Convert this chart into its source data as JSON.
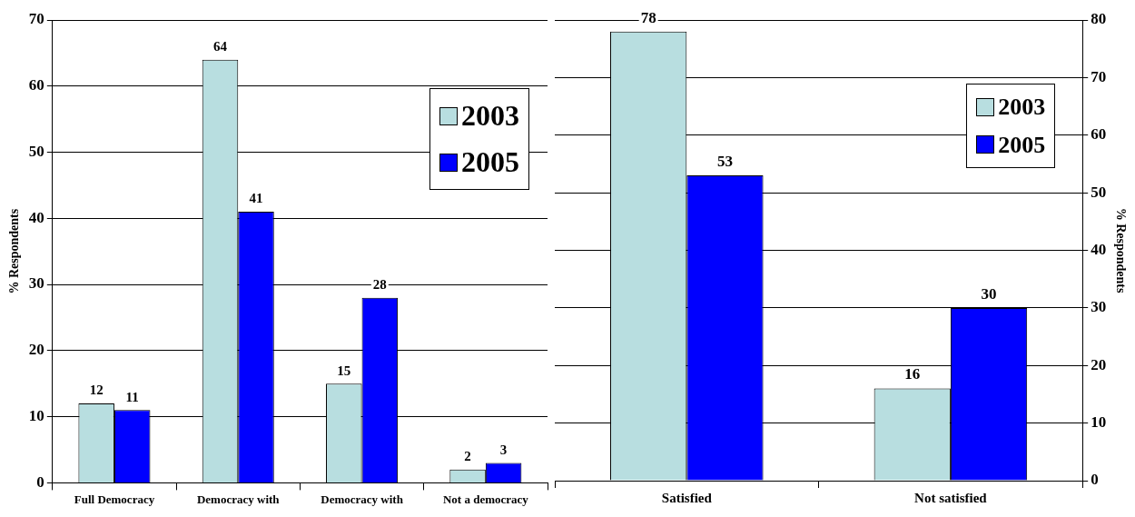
{
  "chart_data": [
    {
      "type": "bar",
      "ylabel": "% Respondents",
      "categories": [
        "Full Democracy",
        "Democracy with",
        "Democracy with",
        "Not a democracy"
      ],
      "series": [
        {
          "name": "2003",
          "color": "#b8dee0",
          "values": [
            12,
            64,
            15,
            2
          ]
        },
        {
          "name": "2005",
          "color": "#0000ff",
          "values": [
            11,
            41,
            28,
            3
          ]
        }
      ],
      "ylim": [
        0,
        70
      ],
      "yticks": [
        0,
        10,
        20,
        30,
        40,
        50,
        60,
        70
      ],
      "grid": "y",
      "legend": "top right",
      "data_labels": true
    },
    {
      "type": "bar",
      "y2label": "% Respondents",
      "categories": [
        "Satisfied",
        "Not satisfied"
      ],
      "series": [
        {
          "name": "2003",
          "color": "#b8dee0",
          "values": [
            78,
            16
          ],
          "axis": "y2"
        },
        {
          "name": "2005",
          "color": "#0000ff",
          "values": [
            53,
            30
          ],
          "axis": "y2"
        }
      ],
      "y2lim": [
        0,
        80
      ],
      "y2ticks": [
        0,
        10,
        20,
        30,
        40,
        50,
        60,
        70,
        80
      ],
      "grid": "y",
      "legend": "top right",
      "data_labels": true
    }
  ]
}
